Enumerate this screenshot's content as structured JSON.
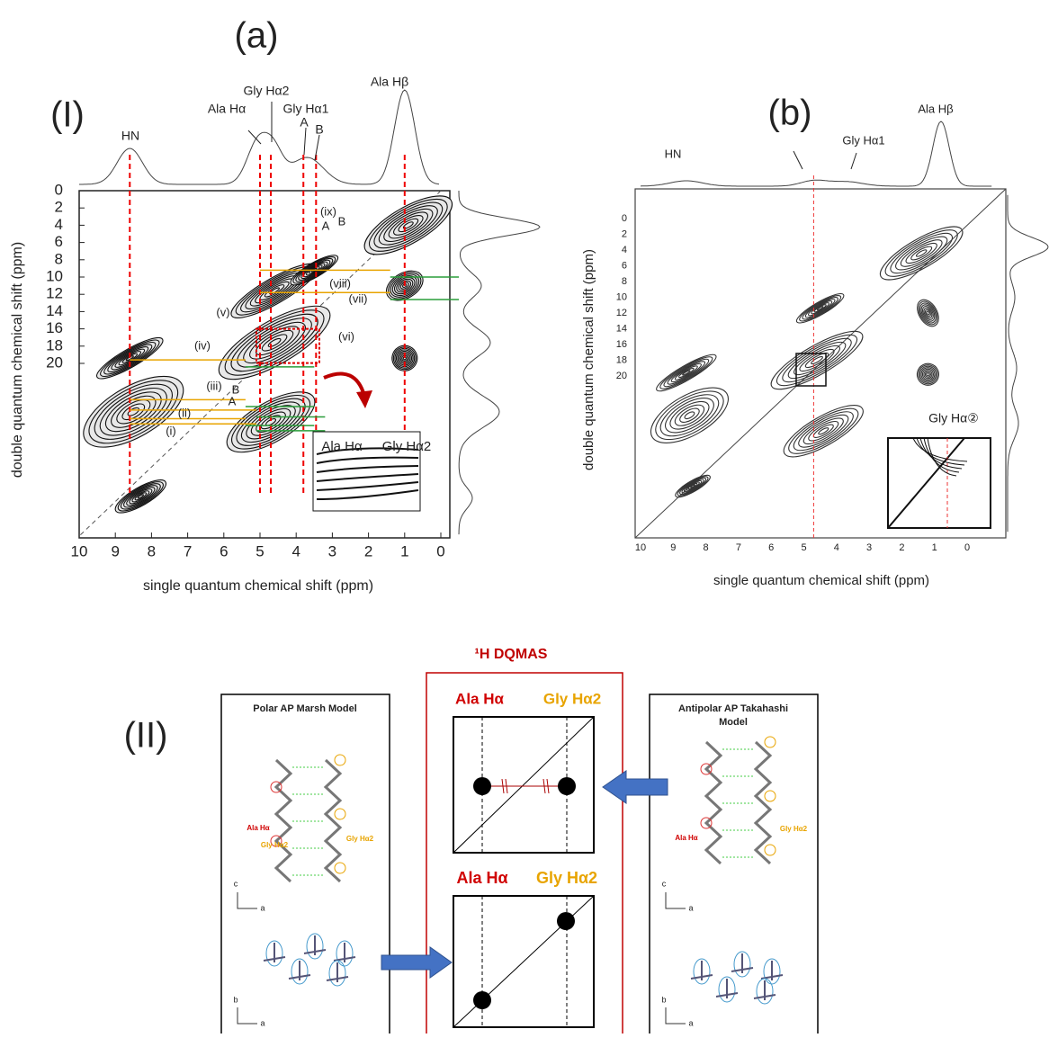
{
  "panel_a": {
    "label": "(a)",
    "section_label": "(I)",
    "peak_labels": [
      "HN",
      "Ala Hα",
      "Gly Hα2",
      "Gly Hα1",
      "A",
      "B",
      "Ala Hβ"
    ],
    "annotations": [
      "(ix)",
      "A",
      "B",
      "(viii)",
      "(vii)",
      "(v)",
      "(vi)",
      "(iv)",
      "(iii)",
      "B",
      "A",
      "(ii)",
      "(i)"
    ],
    "inset_labels": [
      "Ala Hα",
      "Gly Hα2"
    ],
    "x_ticks": [
      10,
      9,
      8,
      7,
      6,
      5,
      4,
      3,
      2,
      1,
      0
    ],
    "y_ticks": [
      0,
      2,
      4,
      6,
      8,
      10,
      12,
      14,
      16,
      18,
      20
    ],
    "x_axis_label": "single quantum chemical shift (ppm)",
    "y_axis_label": "double quantum chemical shift (ppm)"
  },
  "panel_b": {
    "label": "(b)",
    "peak_labels": [
      "HN",
      "Gly Hα1",
      "Ala Hβ"
    ],
    "inset_label": "Gly Hα②",
    "x_ticks": [
      10,
      9,
      8,
      7,
      6,
      5,
      4,
      3,
      2,
      1,
      0
    ],
    "y_ticks": [
      0,
      2,
      4,
      6,
      8,
      10,
      12,
      14,
      16,
      18,
      20
    ],
    "x_axis_label": "single quantum chemical shift (ppm)",
    "y_axis_label": "double quantum chemical shift (ppm)"
  },
  "section_II": {
    "label": "(II)",
    "title": "¹H DQMAS",
    "left_model": {
      "title": "Polar AP Marsh Model",
      "labels": [
        "Ala Hα",
        "Gly Hα2",
        "Gly Hα2"
      ],
      "axes": [
        "c",
        "a",
        "b",
        "a"
      ]
    },
    "right_model": {
      "title": [
        "Antipolar AP Takahashi",
        "Model"
      ],
      "labels": [
        "Ala Hα",
        "Gly Hα2"
      ],
      "axes": [
        "c",
        "a",
        "b",
        "a"
      ]
    },
    "top_schematic": {
      "labels": [
        "Ala Hα",
        "Gly Hα2"
      ]
    },
    "bottom_schematic": {
      "labels": [
        "Ala Hα",
        "Gly Hα2"
      ]
    }
  }
}
